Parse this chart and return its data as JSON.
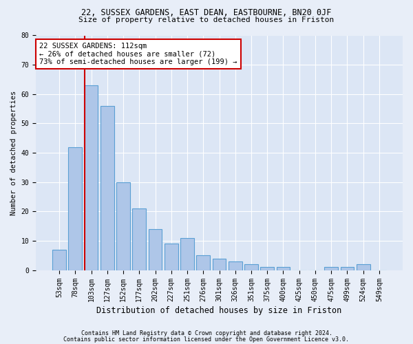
{
  "title1": "22, SUSSEX GARDENS, EAST DEAN, EASTBOURNE, BN20 0JF",
  "title2": "Size of property relative to detached houses in Friston",
  "xlabel": "Distribution of detached houses by size in Friston",
  "ylabel": "Number of detached properties",
  "categories": [
    "53sqm",
    "78sqm",
    "103sqm",
    "127sqm",
    "152sqm",
    "177sqm",
    "202sqm",
    "227sqm",
    "251sqm",
    "276sqm",
    "301sqm",
    "326sqm",
    "351sqm",
    "375sqm",
    "400sqm",
    "425sqm",
    "450sqm",
    "475sqm",
    "499sqm",
    "524sqm",
    "549sqm"
  ],
  "values": [
    7,
    42,
    63,
    56,
    30,
    21,
    14,
    9,
    11,
    5,
    4,
    3,
    2,
    1,
    1,
    0,
    0,
    1,
    1,
    2,
    0
  ],
  "bar_color": "#aec6e8",
  "bar_edge_color": "#5a9fd4",
  "vline_idx": 2,
  "vline_color": "#cc0000",
  "annotation_line1": "22 SUSSEX GARDENS: 112sqm",
  "annotation_line2": "← 26% of detached houses are smaller (72)",
  "annotation_line3": "73% of semi-detached houses are larger (199) →",
  "annotation_box_color": "#ffffff",
  "annotation_box_edge": "#cc0000",
  "ylim": [
    0,
    80
  ],
  "yticks": [
    0,
    10,
    20,
    30,
    40,
    50,
    60,
    70,
    80
  ],
  "footer1": "Contains HM Land Registry data © Crown copyright and database right 2024.",
  "footer2": "Contains public sector information licensed under the Open Government Licence v3.0.",
  "bg_color": "#e8eef8",
  "plot_bg_color": "#dce6f5",
  "title1_fontsize": 8.5,
  "title2_fontsize": 8.0,
  "xlabel_fontsize": 8.5,
  "ylabel_fontsize": 7.5,
  "tick_fontsize": 7.0,
  "annot_fontsize": 7.5
}
